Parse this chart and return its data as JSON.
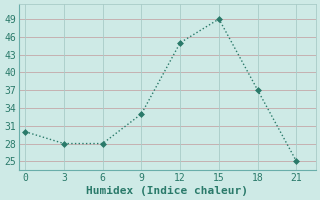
{
  "x": [
    0,
    3,
    6,
    9,
    12,
    15,
    18,
    21
  ],
  "y": [
    30,
    28,
    28,
    33,
    45,
    49,
    37,
    25
  ],
  "line_color": "#2a7a6a",
  "marker_color": "#2a7a6a",
  "bg_color": "#ceeae6",
  "grid_color_h": "#c4a8a8",
  "grid_color_v": "#a8ccc8",
  "xlabel": "Humidex (Indice chaleur)",
  "xlim": [
    -0.5,
    22.5
  ],
  "ylim": [
    23.5,
    51.5
  ],
  "xticks": [
    0,
    3,
    6,
    9,
    12,
    15,
    18,
    21
  ],
  "yticks": [
    25,
    28,
    31,
    34,
    37,
    40,
    43,
    46,
    49
  ],
  "font_size": 7,
  "xlabel_fontsize": 8,
  "marker_size": 3,
  "line_width": 1.0
}
